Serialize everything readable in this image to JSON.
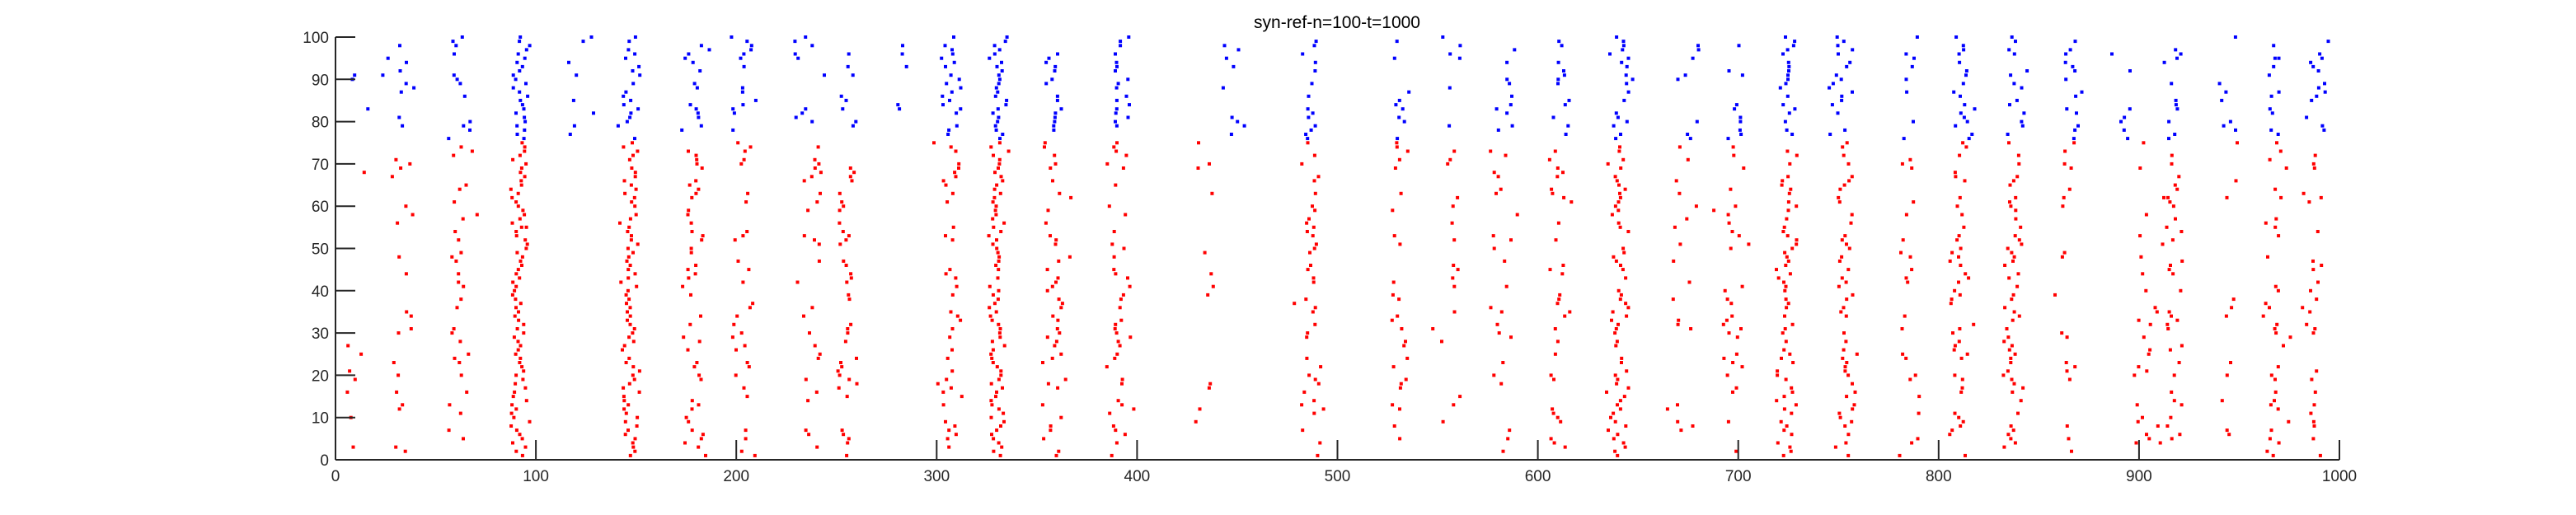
{
  "chart_data": {
    "type": "scatter",
    "title": "syn-ref-n=100-t=1000",
    "xlabel": "",
    "ylabel": "",
    "xlim": [
      0,
      1000
    ],
    "ylim": [
      0,
      100
    ],
    "x_ticks": [
      0,
      100,
      200,
      300,
      400,
      500,
      600,
      700,
      800,
      900,
      1000
    ],
    "y_ticks": [
      0,
      10,
      20,
      30,
      40,
      50,
      60,
      70,
      80,
      90,
      100
    ],
    "grid": false,
    "legend": "none",
    "marker": "dot",
    "series": [
      {
        "color": "#ff0000",
        "neuron_range": [
          1,
          75
        ],
        "note_level": "excitatory",
        "burst_centers": [
          12,
          33,
          62,
          91,
          147,
          179,
          203,
          238,
          254,
          307,
          330,
          359,
          391,
          433,
          487,
          530,
          557,
          582,
          611,
          641,
          672,
          697,
          724,
          753,
          786,
          810,
          837,
          864,
          903,
          917,
          946,
          968,
          988
        ],
        "burst_density": [
          0.15,
          0.3,
          0.45,
          1.0,
          0.9,
          0.5,
          0.4,
          0.25,
          0.5,
          0.55,
          0.95,
          0.55,
          0.6,
          0.15,
          0.5,
          0.35,
          0.2,
          0.4,
          0.55,
          0.75,
          0.25,
          0.35,
          0.8,
          0.7,
          0.3,
          0.55,
          0.7,
          0.25,
          0.25,
          0.55,
          0.2,
          0.5,
          0.45
        ]
      },
      {
        "color": "#0000ff",
        "neuron_range": [
          76,
          100
        ],
        "burst_centers": [
          9,
          32,
          63,
          92,
          120,
          148,
          180,
          204,
          234,
          255,
          280,
          307,
          331,
          359,
          391,
          448,
          487,
          530,
          558,
          585,
          612,
          643,
          676,
          700,
          724,
          752,
          785,
          812,
          839,
          866,
          893,
          918,
          946,
          968,
          990
        ],
        "burst_density": [
          0.35,
          0.5,
          0.55,
          1.0,
          0.3,
          0.8,
          0.6,
          0.45,
          0.3,
          0.45,
          0.3,
          0.55,
          0.95,
          0.6,
          0.7,
          0.25,
          0.6,
          0.45,
          0.35,
          0.5,
          0.55,
          0.6,
          0.35,
          0.5,
          0.75,
          0.7,
          0.35,
          0.55,
          0.65,
          0.35,
          0.4,
          0.5,
          0.3,
          0.5,
          0.45
        ]
      }
    ]
  },
  "axes": {
    "x_tick_labels": [
      "0",
      "100",
      "200",
      "300",
      "400",
      "500",
      "600",
      "700",
      "800",
      "900",
      "1000"
    ],
    "y_tick_labels": [
      "0",
      "10",
      "20",
      "30",
      "40",
      "50",
      "60",
      "70",
      "80",
      "90",
      "100"
    ]
  }
}
